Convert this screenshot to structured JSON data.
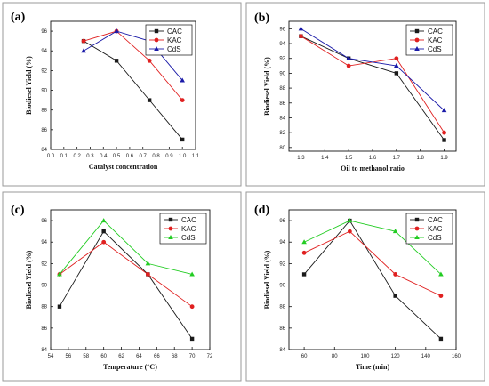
{
  "colors": {
    "CAC": "#1a1a1a",
    "KAC": "#e02020",
    "CdS_blue": "#1a1aa8",
    "CdS_green": "#22cc22"
  },
  "chart_data": [
    {
      "panel": "(a)",
      "type": "line",
      "xlabel": "Catalyst concentration",
      "ylabel": "Biodiesel Yield (%)",
      "xlim": [
        0.0,
        1.1
      ],
      "ylim": [
        84,
        97
      ],
      "xticks": [
        0.0,
        0.1,
        0.2,
        0.3,
        0.4,
        0.5,
        0.6,
        0.7,
        0.8,
        0.9,
        1.0,
        1.1
      ],
      "xtick_labels": [
        "0.0",
        "0.1",
        "0.2",
        "0.3",
        "0.4",
        "0.5",
        "0.6",
        "0.7",
        "0.8",
        "0.9",
        "1.0",
        "1.1"
      ],
      "yticks": [
        84,
        86,
        88,
        90,
        92,
        94,
        96
      ],
      "ytick_labels": [
        "84",
        "86",
        "88",
        "90",
        "92",
        "94",
        "96"
      ],
      "legend": "top-right",
      "series": [
        {
          "name": "CAC",
          "color": "#1a1a1a",
          "marker": "square",
          "x": [
            0.25,
            0.5,
            0.75,
            1.0
          ],
          "y": [
            95,
            93,
            89,
            85
          ]
        },
        {
          "name": "KAC",
          "color": "#e02020",
          "marker": "circle",
          "x": [
            0.25,
            0.5,
            0.75,
            1.0
          ],
          "y": [
            95,
            96,
            93,
            89
          ]
        },
        {
          "name": "CdS",
          "color": "#1a1aa8",
          "marker": "triangle",
          "x": [
            0.25,
            0.5,
            0.75,
            1.0
          ],
          "y": [
            94,
            96,
            95,
            91
          ]
        }
      ]
    },
    {
      "panel": "(b)",
      "type": "line",
      "xlabel": "Oil to methanol ratio",
      "ylabel": "Biodiesel Yield (%)",
      "xlim": [
        1.25,
        1.95
      ],
      "ylim": [
        79.5,
        97
      ],
      "xticks": [
        1.3,
        1.4,
        1.5,
        1.6,
        1.7,
        1.8,
        1.9
      ],
      "xtick_labels": [
        "1.3",
        "1.4",
        "1.5",
        "1.6",
        "1.7",
        "1.8",
        "1.9"
      ],
      "yticks": [
        80,
        82,
        84,
        86,
        88,
        90,
        92,
        94,
        96
      ],
      "ytick_labels": [
        "80",
        "82",
        "84",
        "86",
        "88",
        "90",
        "92",
        "94",
        "96"
      ],
      "legend": "top-right",
      "series": [
        {
          "name": "CAC",
          "color": "#1a1a1a",
          "marker": "square",
          "x": [
            1.3,
            1.5,
            1.7,
            1.9
          ],
          "y": [
            95,
            92,
            90,
            81
          ]
        },
        {
          "name": "KAC",
          "color": "#e02020",
          "marker": "circle",
          "x": [
            1.3,
            1.5,
            1.7,
            1.9
          ],
          "y": [
            95,
            91,
            92,
            82
          ]
        },
        {
          "name": "CdS",
          "color": "#1a1aa8",
          "marker": "triangle",
          "x": [
            1.3,
            1.5,
            1.7,
            1.9
          ],
          "y": [
            96,
            92,
            91,
            85
          ]
        }
      ]
    },
    {
      "panel": "(c)",
      "type": "line",
      "xlabel": "Temperature (°C)",
      "ylabel": "Biodiesel Yield (%)",
      "xlim": [
        54,
        72
      ],
      "ylim": [
        84,
        97
      ],
      "xticks": [
        54,
        56,
        58,
        60,
        62,
        64,
        66,
        68,
        70,
        72
      ],
      "xtick_labels": [
        "54",
        "56",
        "58",
        "60",
        "62",
        "64",
        "66",
        "68",
        "70",
        "72"
      ],
      "yticks": [
        84,
        86,
        88,
        90,
        92,
        94,
        96
      ],
      "ytick_labels": [
        "84",
        "86",
        "88",
        "90",
        "92",
        "94",
        "96"
      ],
      "legend": "top-right",
      "series": [
        {
          "name": "CAC",
          "color": "#1a1a1a",
          "marker": "square",
          "x": [
            55,
            60,
            65,
            70
          ],
          "y": [
            88,
            95,
            91,
            85
          ]
        },
        {
          "name": "KAC",
          "color": "#e02020",
          "marker": "circle",
          "x": [
            55,
            60,
            65,
            70
          ],
          "y": [
            91,
            94,
            91,
            88
          ]
        },
        {
          "name": "CdS",
          "color": "#22cc22",
          "marker": "triangle",
          "x": [
            55,
            60,
            65,
            70
          ],
          "y": [
            91,
            96,
            92,
            91
          ]
        }
      ]
    },
    {
      "panel": "(d)",
      "type": "line",
      "xlabel": "Time (min)",
      "ylabel": "Biodiesel Yield (%)",
      "xlim": [
        50,
        160
      ],
      "ylim": [
        84,
        97
      ],
      "xticks": [
        60,
        80,
        100,
        120,
        140,
        160
      ],
      "xtick_labels": [
        "60",
        "80",
        "100",
        "120",
        "140",
        "160"
      ],
      "yticks": [
        84,
        86,
        88,
        90,
        92,
        94,
        96
      ],
      "ytick_labels": [
        "84",
        "86",
        "88",
        "90",
        "92",
        "94",
        "96"
      ],
      "legend": "top-right",
      "series": [
        {
          "name": "CAC",
          "color": "#1a1a1a",
          "marker": "square",
          "x": [
            60,
            90,
            120,
            150
          ],
          "y": [
            91,
            96,
            89,
            85
          ]
        },
        {
          "name": "KAC",
          "color": "#e02020",
          "marker": "circle",
          "x": [
            60,
            90,
            120,
            150
          ],
          "y": [
            93,
            95,
            91,
            89
          ]
        },
        {
          "name": "CdS",
          "color": "#22cc22",
          "marker": "triangle",
          "x": [
            60,
            90,
            120,
            150
          ],
          "y": [
            94,
            96,
            95,
            91
          ]
        }
      ]
    }
  ]
}
